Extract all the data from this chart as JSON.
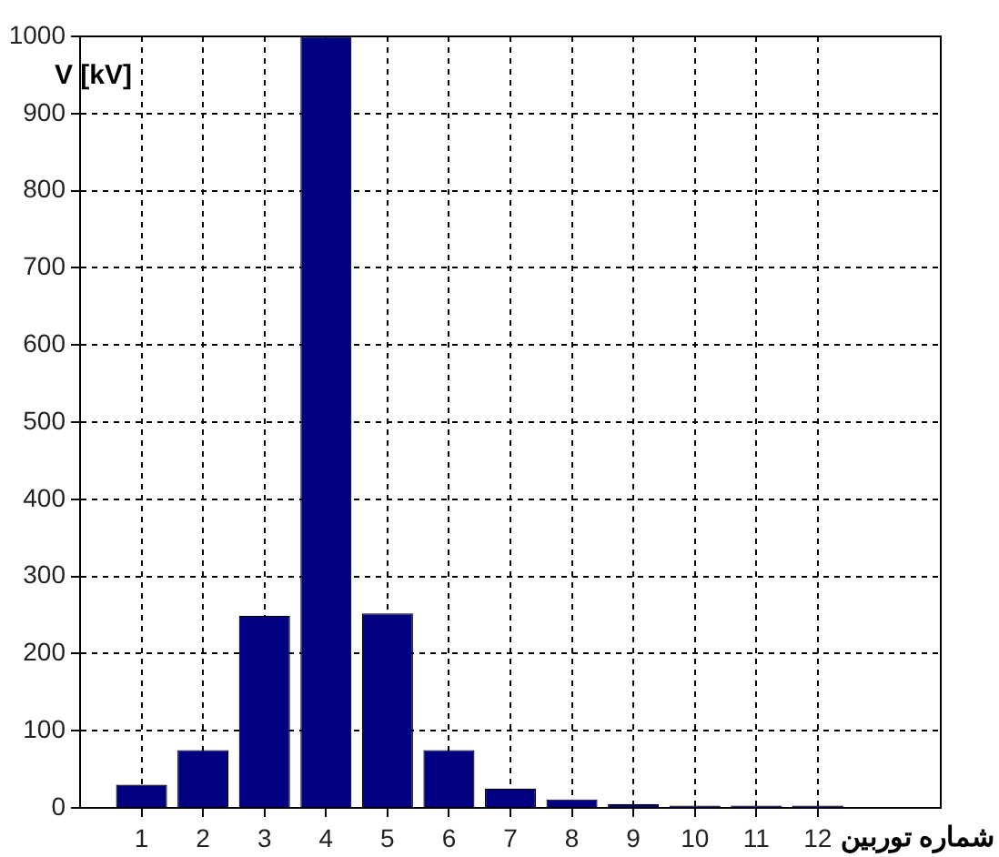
{
  "chart_data": {
    "type": "bar",
    "ylabel": "V [kV]",
    "xlabel": "شماره توربین",
    "x": [
      1,
      2,
      3,
      4,
      5,
      6,
      7,
      8,
      9,
      10,
      11,
      12
    ],
    "values": [
      30,
      75,
      249,
      1000,
      252,
      75,
      25,
      11,
      5,
      3,
      3,
      3
    ],
    "color": "#000080",
    "xlim": [
      0,
      14
    ],
    "xticks": [
      1,
      2,
      3,
      4,
      5,
      6,
      7,
      8,
      9,
      10,
      11,
      12
    ],
    "ylim": [
      0,
      1000
    ],
    "yticks": [
      0,
      100,
      200,
      300,
      400,
      500,
      600,
      700,
      800,
      900,
      1000
    ],
    "grid": true
  }
}
